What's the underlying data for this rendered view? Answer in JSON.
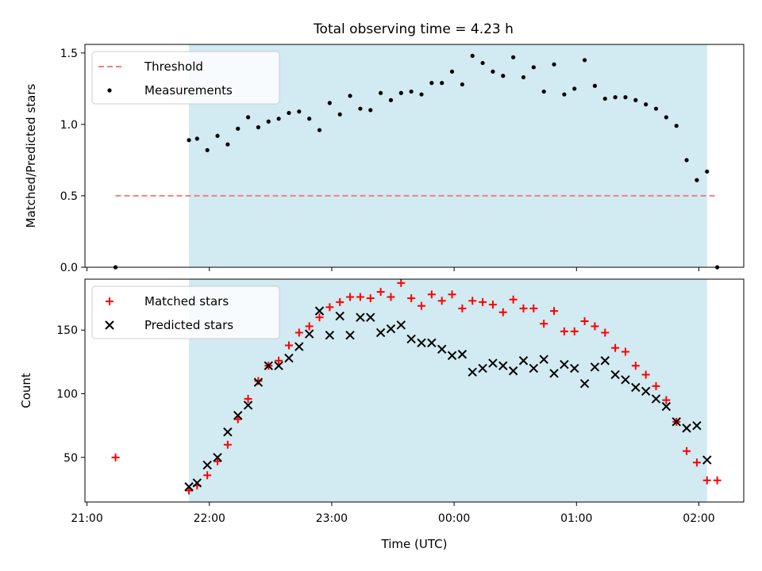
{
  "figure": {
    "title": "Total observing time = 4.23 h"
  },
  "colors": {
    "shade": "#add8e6",
    "threshold": "#f08080",
    "measurement": "#000000",
    "matched": "#ff0000",
    "predicted": "#000000"
  },
  "chart_data": [
    {
      "type": "scatter",
      "panel": "top",
      "title": "Total observing time = 4.23 h",
      "xlabel": "",
      "ylabel": "Matched/Predicted stars",
      "xlim": [
        "20:59",
        "02:22"
      ],
      "ylim": [
        0,
        1.56
      ],
      "yticks": [
        0.0,
        0.5,
        1.0,
        1.5
      ],
      "ytick_labels": [
        "0.0",
        "0.5",
        "1.0",
        "1.5"
      ],
      "xticks": [
        "21:00",
        "22:00",
        "23:00",
        "00:00",
        "01:00",
        "02:00"
      ],
      "shaded_span": [
        "21:50",
        "02:04"
      ],
      "legend": {
        "location": "upper left",
        "entries": [
          "Threshold",
          "Measurements"
        ]
      },
      "threshold": {
        "name": "Threshold",
        "value": 0.5,
        "x": [
          "21:14",
          "02:09"
        ]
      },
      "series": [
        {
          "name": "Measurements",
          "marker": "dot",
          "x": [
            "21:14",
            "21:50",
            "21:54",
            "21:59",
            "22:04",
            "22:09",
            "22:14",
            "22:19",
            "22:24",
            "22:29",
            "22:34",
            "22:39",
            "22:44",
            "22:49",
            "22:54",
            "22:59",
            "23:04",
            "23:09",
            "23:14",
            "23:19",
            "23:24",
            "23:29",
            "23:34",
            "23:39",
            "23:44",
            "23:49",
            "23:54",
            "23:59",
            "24:04",
            "24:09",
            "24:14",
            "24:19",
            "24:24",
            "24:29",
            "24:34",
            "24:39",
            "24:44",
            "24:49",
            "24:54",
            "24:59",
            "25:04",
            "25:09",
            "25:14",
            "25:19",
            "25:24",
            "25:29",
            "25:34",
            "25:39",
            "25:44",
            "25:49",
            "25:54",
            "25:59",
            "26:04",
            "26:09"
          ],
          "y": [
            0.0,
            0.89,
            0.9,
            0.82,
            0.92,
            0.86,
            0.97,
            1.05,
            0.98,
            1.02,
            1.04,
            1.08,
            1.09,
            1.04,
            0.96,
            1.15,
            1.07,
            1.2,
            1.11,
            1.1,
            1.22,
            1.17,
            1.22,
            1.23,
            1.21,
            1.29,
            1.29,
            1.37,
            1.28,
            1.48,
            1.43,
            1.37,
            1.34,
            1.47,
            1.33,
            1.4,
            1.23,
            1.42,
            1.21,
            1.25,
            1.45,
            1.27,
            1.18,
            1.19,
            1.19,
            1.17,
            1.14,
            1.11,
            1.05,
            0.99,
            0.75,
            0.61,
            0.67,
            0.0
          ]
        }
      ]
    },
    {
      "type": "scatter",
      "panel": "bottom",
      "title": "",
      "xlabel": "Time (UTC)",
      "ylabel": "Count",
      "xlim": [
        "20:59",
        "02:22"
      ],
      "ylim": [
        15,
        190
      ],
      "yticks": [
        50,
        100,
        150
      ],
      "ytick_labels": [
        "50",
        "100",
        "150"
      ],
      "xticks": [
        "21:00",
        "22:00",
        "23:00",
        "00:00",
        "01:00",
        "02:00"
      ],
      "shaded_span": [
        "21:50",
        "02:04"
      ],
      "legend": {
        "location": "upper left",
        "entries": [
          "Matched stars",
          "Predicted stars"
        ]
      },
      "series": [
        {
          "name": "Matched stars",
          "marker": "plus",
          "x": [
            "21:14",
            "21:50",
            "21:54",
            "21:59",
            "22:04",
            "22:09",
            "22:14",
            "22:19",
            "22:24",
            "22:29",
            "22:34",
            "22:39",
            "22:44",
            "22:49",
            "22:54",
            "22:59",
            "23:04",
            "23:09",
            "23:14",
            "23:19",
            "23:24",
            "23:29",
            "23:34",
            "23:39",
            "23:44",
            "23:49",
            "23:54",
            "23:59",
            "24:04",
            "24:09",
            "24:14",
            "24:19",
            "24:24",
            "24:29",
            "24:34",
            "24:39",
            "24:44",
            "24:49",
            "24:54",
            "24:59",
            "25:04",
            "25:09",
            "25:14",
            "25:19",
            "25:24",
            "25:29",
            "25:34",
            "25:39",
            "25:44",
            "25:49",
            "25:54",
            "25:59",
            "26:04",
            "26:09"
          ],
          "y": [
            50,
            24,
            28,
            36,
            47,
            60,
            80,
            96,
            110,
            122,
            126,
            138,
            148,
            153,
            160,
            168,
            172,
            176,
            176,
            175,
            180,
            176,
            187,
            175,
            169,
            178,
            173,
            178,
            167,
            173,
            172,
            170,
            164,
            174,
            167,
            167,
            155,
            165,
            149,
            149,
            157,
            153,
            148,
            136,
            133,
            122,
            115,
            106,
            95,
            78,
            55,
            46,
            32,
            32
          ]
        },
        {
          "name": "Predicted stars",
          "marker": "x",
          "x": [
            "21:50",
            "21:54",
            "21:59",
            "22:04",
            "22:09",
            "22:14",
            "22:19",
            "22:24",
            "22:29",
            "22:34",
            "22:39",
            "22:44",
            "22:49",
            "22:54",
            "22:59",
            "23:04",
            "23:09",
            "23:14",
            "23:19",
            "23:24",
            "23:29",
            "23:34",
            "23:39",
            "23:44",
            "23:49",
            "23:54",
            "23:59",
            "24:04",
            "24:09",
            "24:14",
            "24:19",
            "24:24",
            "24:29",
            "24:34",
            "24:39",
            "24:44",
            "24:49",
            "24:54",
            "24:59",
            "25:04",
            "25:09",
            "25:14",
            "25:19",
            "25:24",
            "25:29",
            "25:34",
            "25:39",
            "25:44",
            "25:49",
            "25:54",
            "25:59",
            "26:04"
          ],
          "y": [
            27,
            30,
            44,
            50,
            70,
            83,
            91,
            109,
            122,
            122,
            128,
            137,
            147,
            165,
            146,
            161,
            146,
            160,
            160,
            148,
            151,
            154,
            143,
            140,
            140,
            135,
            130,
            131,
            117,
            120,
            124,
            122,
            118,
            126,
            120,
            127,
            116,
            123,
            120,
            108,
            121,
            126,
            115,
            111,
            105,
            102,
            96,
            90,
            78,
            73,
            75,
            48
          ]
        }
      ]
    }
  ]
}
